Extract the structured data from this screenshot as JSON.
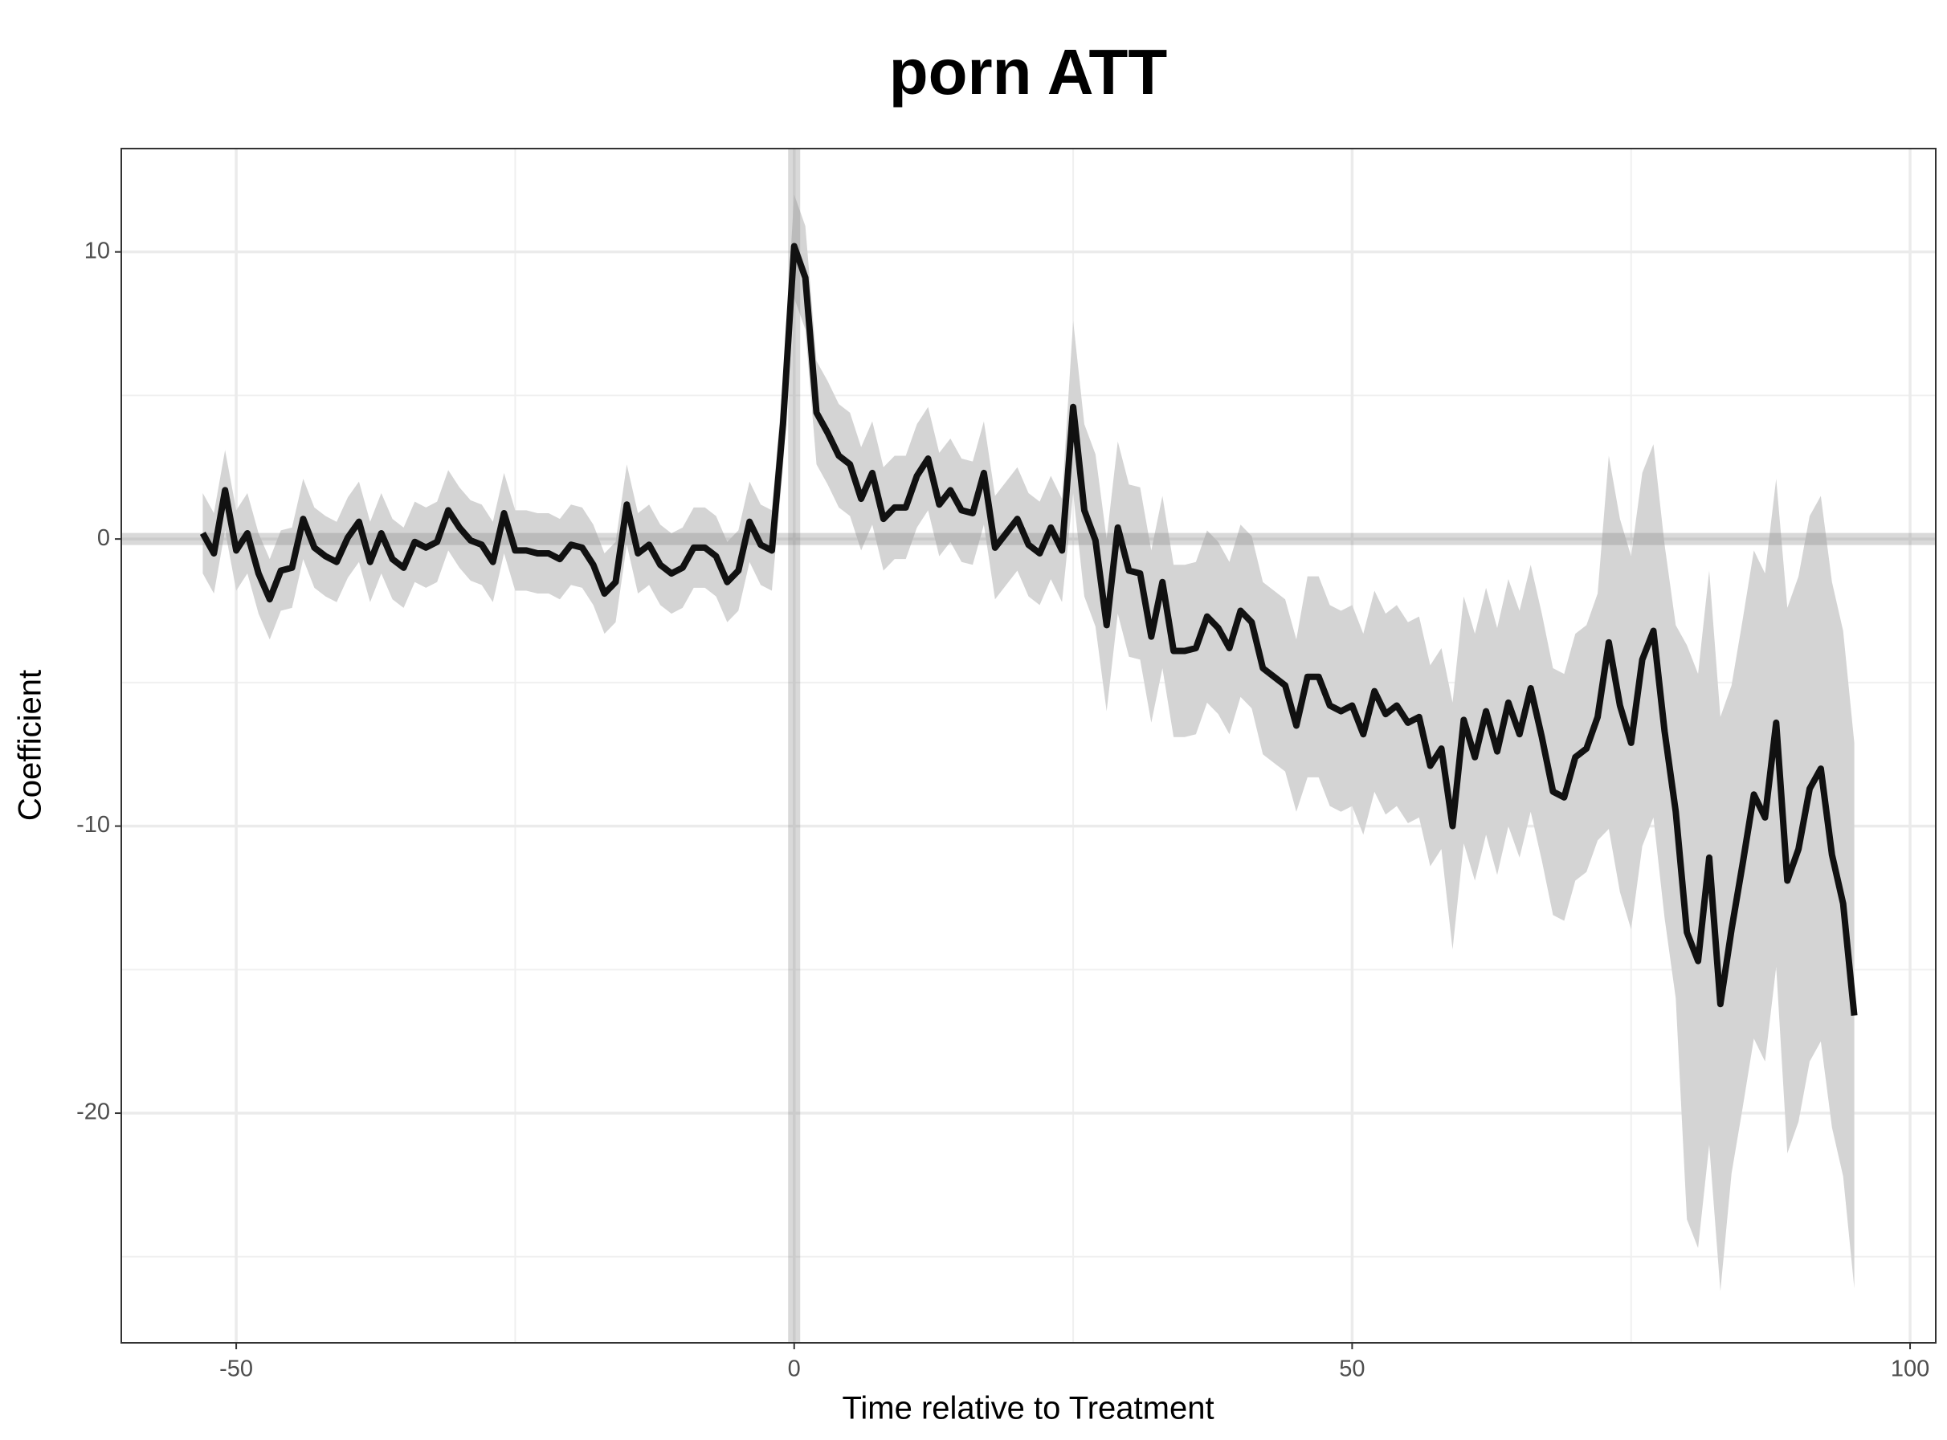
{
  "chart_data": {
    "type": "line",
    "title": "porn ATT",
    "x_label": "Time relative to Treatment",
    "y_label": "Coefficient",
    "x": [
      -53,
      -52,
      -51,
      -50,
      -49,
      -48,
      -47,
      -46,
      -45,
      -44,
      -43,
      -42,
      -41,
      -40,
      -39,
      -38,
      -37,
      -36,
      -35,
      -34,
      -33,
      -32,
      -31,
      -30,
      -29,
      -28,
      -27,
      -26,
      -25,
      -24,
      -23,
      -22,
      -21,
      -20,
      -19,
      -18,
      -17,
      -16,
      -15,
      -14,
      -13,
      -12,
      -11,
      -10,
      -9,
      -8,
      -7,
      -6,
      -5,
      -4,
      -3,
      -2,
      -1,
      0,
      1,
      2,
      3,
      4,
      5,
      6,
      7,
      8,
      9,
      10,
      11,
      12,
      13,
      14,
      15,
      16,
      17,
      18,
      19,
      20,
      21,
      22,
      23,
      24,
      25,
      26,
      27,
      28,
      29,
      30,
      31,
      32,
      33,
      34,
      35,
      36,
      37,
      38,
      39,
      40,
      41,
      42,
      43,
      44,
      45,
      46,
      47,
      48,
      49,
      50,
      51,
      52,
      53,
      54,
      55,
      56,
      57,
      58,
      59,
      60,
      61,
      62,
      63,
      64,
      65,
      66,
      67,
      68,
      69,
      70,
      71,
      72,
      73,
      74,
      75,
      76,
      77,
      78,
      79,
      80,
      81,
      82,
      83,
      84,
      85,
      86,
      87,
      88,
      89,
      90,
      91,
      92,
      93,
      94,
      95
    ],
    "series": [
      {
        "color": "#111111",
        "band_color": "#d4d4d4",
        "values": [
          0.2,
          -0.5,
          1.7,
          -0.4,
          0.2,
          -1.2,
          -2.1,
          -1.1,
          -1.0,
          0.7,
          -0.3,
          -0.6,
          -0.8,
          0.05,
          0.6,
          -0.8,
          0.2,
          -0.7,
          -1.0,
          -0.1,
          -0.3,
          -0.1,
          1.0,
          0.4,
          -0.05,
          -0.2,
          -0.8,
          0.9,
          -0.4,
          -0.4,
          -0.5,
          -0.5,
          -0.7,
          -0.2,
          -0.3,
          -0.9,
          -1.9,
          -1.5,
          1.2,
          -0.5,
          -0.2,
          -0.9,
          -1.2,
          -1.0,
          -0.3,
          -0.3,
          -0.6,
          -1.5,
          -1.1,
          0.6,
          -0.2,
          -0.4,
          4.0,
          10.2,
          9.1,
          4.4,
          3.7,
          2.9,
          2.6,
          1.4,
          2.3,
          0.7,
          1.1,
          1.1,
          2.2,
          2.8,
          1.2,
          1.7,
          1.0,
          0.9,
          2.3,
          -0.3,
          0.2,
          0.7,
          -0.2,
          -0.5,
          0.4,
          -0.4,
          4.6,
          1.0,
          -0.05,
          -3.0,
          0.4,
          -1.1,
          -1.2,
          -3.4,
          -1.5,
          -3.9,
          -3.9,
          -3.8,
          -2.7,
          -3.1,
          -3.8,
          -2.5,
          -2.9,
          -4.5,
          -4.8,
          -5.1,
          -6.5,
          -4.8,
          -4.8,
          -5.8,
          -6.0,
          -5.8,
          -6.8,
          -5.3,
          -6.1,
          -5.8,
          -6.4,
          -6.2,
          -7.9,
          -7.3,
          -10.0,
          -6.3,
          -7.6,
          -6.0,
          -7.4,
          -5.7,
          -6.8,
          -5.2,
          -6.9,
          -8.8,
          -9.0,
          -7.6,
          -7.3,
          -6.2,
          -3.6,
          -5.8,
          -7.1,
          -4.2,
          -3.2,
          -6.7,
          -9.5,
          -13.7,
          -14.7,
          -11.1,
          -16.2,
          -13.6,
          -11.3,
          -8.9,
          -9.7,
          -6.4,
          -11.9,
          -10.8,
          -8.7,
          -8.0,
          -11.0,
          -12.7,
          -16.6
        ],
        "errors": [
          1.4,
          1.4,
          1.4,
          1.4,
          1.4,
          1.4,
          1.4,
          1.4,
          1.4,
          1.4,
          1.4,
          1.4,
          1.4,
          1.4,
          1.4,
          1.4,
          1.4,
          1.4,
          1.4,
          1.4,
          1.4,
          1.4,
          1.4,
          1.4,
          1.4,
          1.4,
          1.4,
          1.4,
          1.4,
          1.4,
          1.4,
          1.4,
          1.4,
          1.4,
          1.4,
          1.4,
          1.4,
          1.4,
          1.4,
          1.4,
          1.4,
          1.4,
          1.4,
          1.4,
          1.4,
          1.4,
          1.4,
          1.4,
          1.4,
          1.4,
          1.4,
          1.4,
          1.5,
          1.8,
          1.8,
          1.8,
          1.8,
          1.8,
          1.8,
          1.8,
          1.8,
          1.8,
          1.8,
          1.8,
          1.8,
          1.8,
          1.8,
          1.8,
          1.8,
          1.8,
          1.8,
          1.8,
          1.8,
          1.8,
          1.8,
          1.8,
          1.8,
          1.8,
          3.0,
          3.0,
          3.0,
          3.0,
          3.0,
          3.0,
          3.0,
          3.0,
          3.0,
          3.0,
          3.0,
          3.0,
          3.0,
          3.0,
          3.0,
          3.0,
          3.0,
          3.0,
          3.0,
          3.0,
          3.0,
          3.5,
          3.5,
          3.5,
          3.5,
          3.5,
          3.5,
          3.5,
          3.5,
          3.5,
          3.5,
          3.5,
          3.5,
          3.5,
          4.3,
          4.3,
          4.3,
          4.3,
          4.3,
          4.3,
          4.3,
          4.3,
          4.3,
          4.3,
          4.3,
          4.3,
          4.3,
          4.3,
          6.5,
          6.5,
          6.5,
          6.5,
          6.5,
          6.5,
          6.5,
          10,
          10,
          10,
          10,
          8.5,
          8.5,
          8.5,
          8.5,
          8.5,
          9.5,
          9.5,
          9.5,
          9.5,
          9.5,
          9.5,
          9.5
        ]
      }
    ],
    "xlim": [
      -60.3,
      102.3
    ],
    "ylim": [
      -28.0,
      13.6
    ],
    "xticks": [
      -50,
      0,
      50,
      100
    ],
    "yticks": [
      -20,
      -10,
      0,
      10
    ],
    "xminor": [
      -25,
      25,
      75
    ],
    "yminor": [
      -25,
      -15,
      -5,
      5
    ],
    "vlines": [
      0
    ],
    "hlines": [
      0
    ],
    "grid": true
  }
}
